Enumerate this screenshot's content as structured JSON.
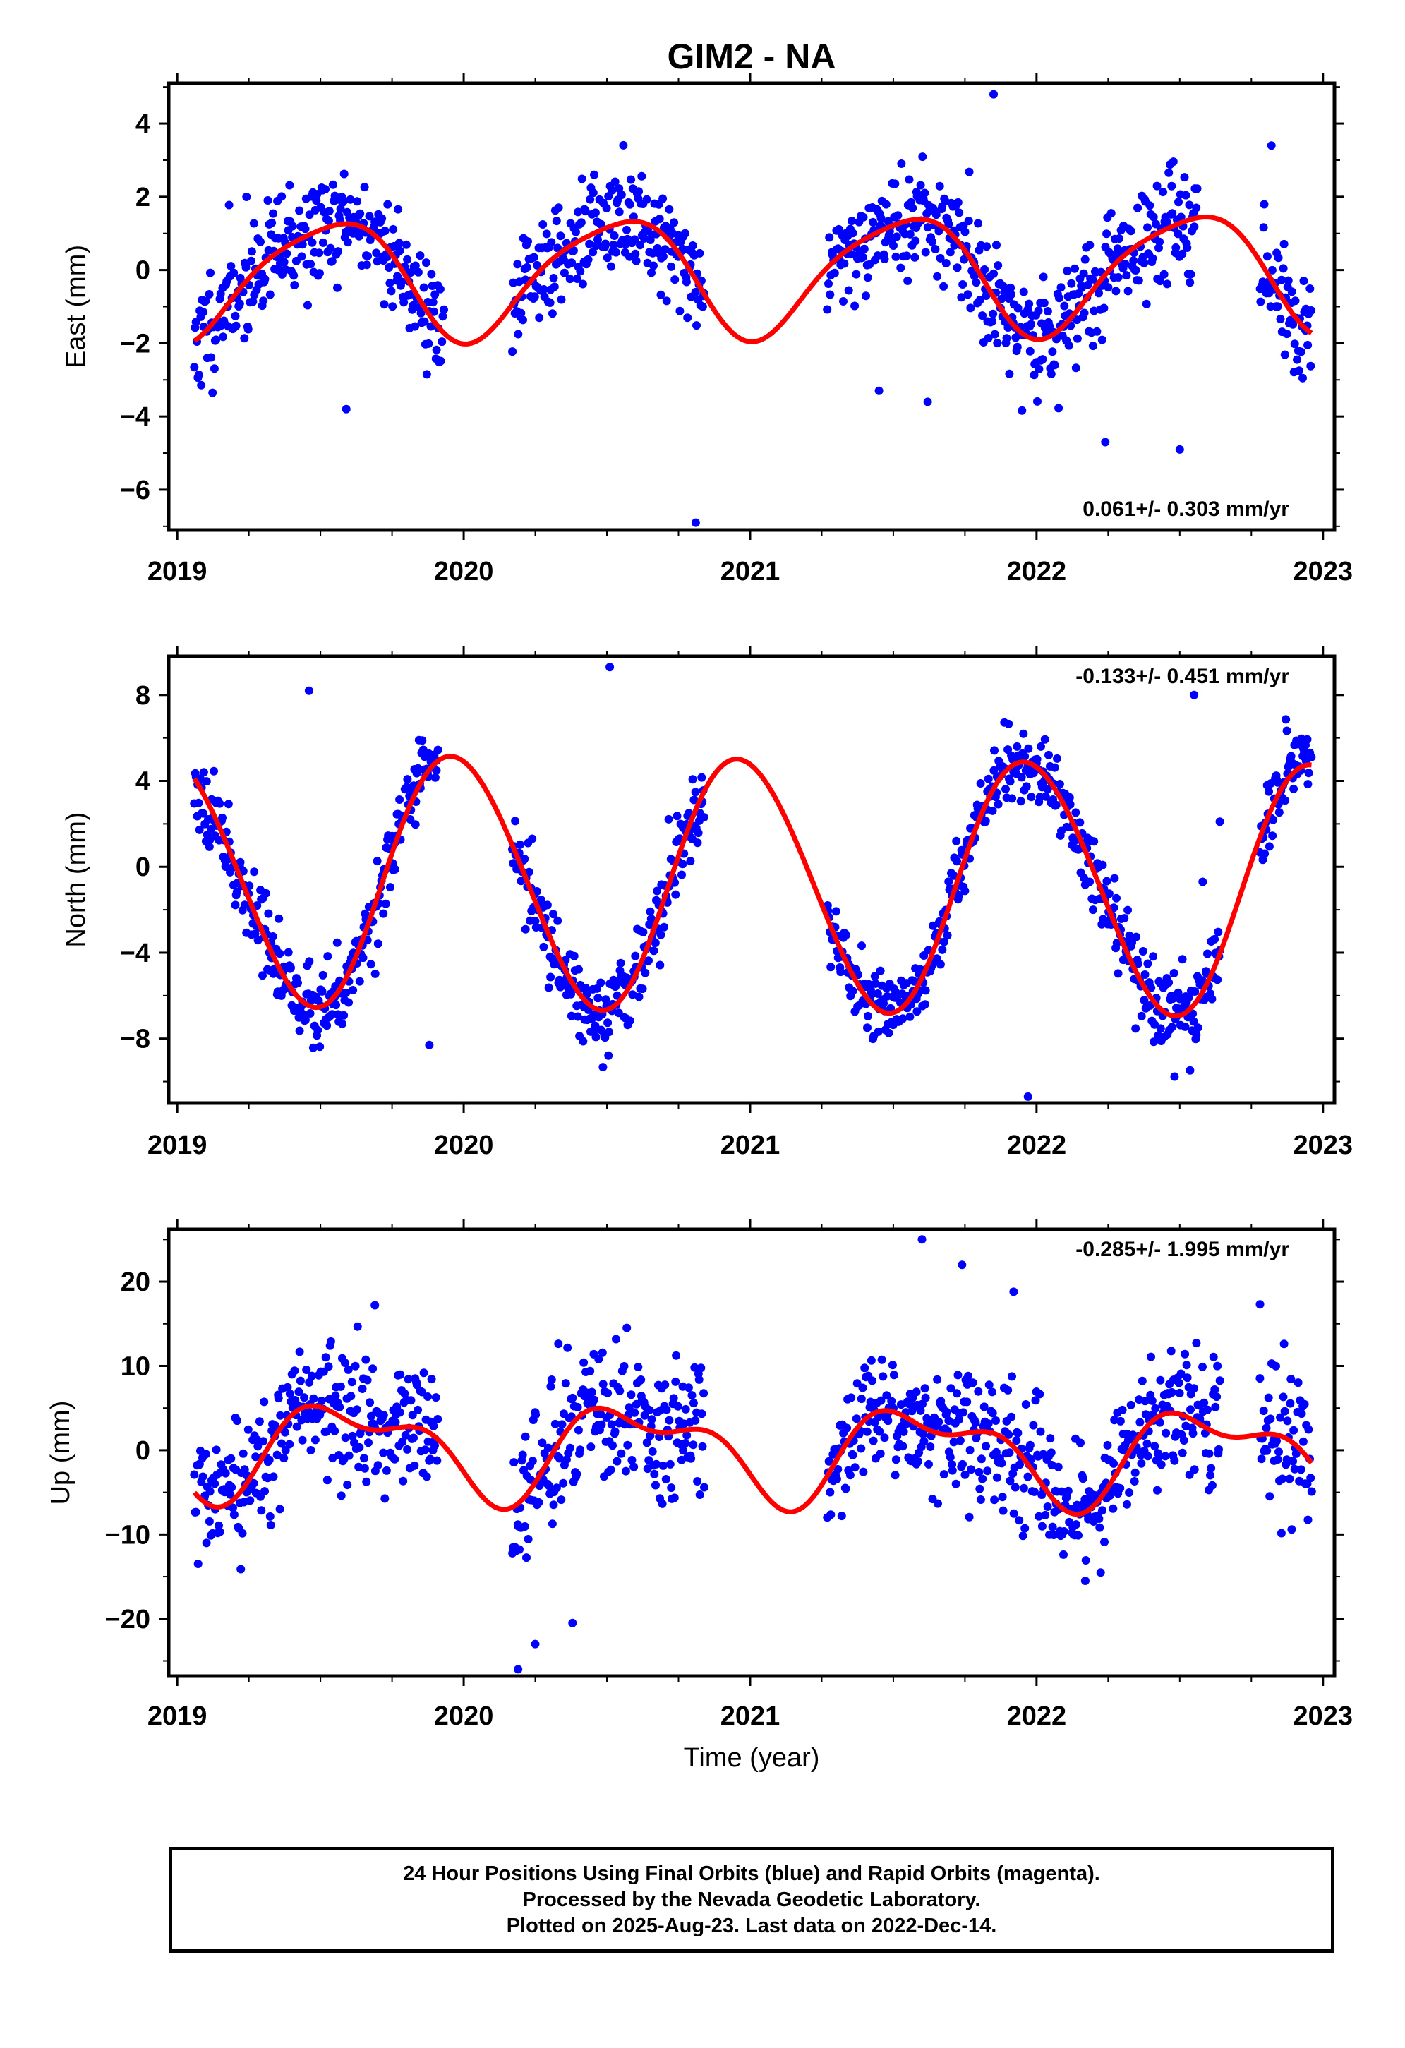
{
  "chart_data": {
    "type": "scatter",
    "title": "GIM2 - NA",
    "xlabel": "Time (year)",
    "x_ticks": [
      "2019",
      "2020",
      "2021",
      "2022",
      "2023"
    ],
    "colors": {
      "points": "#0000ff",
      "fit": "#ff0000",
      "frame": "#000000"
    },
    "panels": [
      {
        "name": "east",
        "ylabel": "East (mm)",
        "ylim": [
          -7.1,
          5.1
        ],
        "xlim": [
          2018.97,
          2023.04
        ],
        "y_ticks": [
          4,
          2,
          0,
          -2,
          -4,
          -6
        ],
        "rate": "0.061+/- 0.303 mm/yr",
        "rate_position": "bottom-right",
        "fit": {
          "mean": -0.1,
          "trend": 0.061,
          "a1": 1.6,
          "p1": 0.28,
          "a2": 0.3,
          "p2": 0.1
        },
        "data_segments": [
          [
            2019.06,
            2019.93
          ],
          [
            2020.17,
            2020.84
          ],
          [
            2021.27,
            2021.58
          ],
          [
            2021.58,
            2022.56
          ],
          [
            2022.78,
            2022.96
          ]
        ],
        "point_sigma": 0.75,
        "seed": 11,
        "outliers": [
          [
            2020.81,
            -6.9
          ],
          [
            2022.24,
            -4.7
          ],
          [
            2022.5,
            -4.9
          ],
          [
            2021.62,
            -3.6
          ],
          [
            2019.59,
            -3.8
          ],
          [
            2021.85,
            4.8
          ],
          [
            2022.82,
            3.4
          ],
          [
            2021.45,
            -3.3
          ]
        ]
      },
      {
        "name": "north",
        "ylabel": "North (mm)",
        "ylim": [
          -11,
          9.8
        ],
        "xlim": [
          2018.97,
          2023.04
        ],
        "y_ticks": [
          8,
          4,
          0,
          -4,
          -8
        ],
        "rate": "-0.133+/- 0.451 mm/yr",
        "rate_position": "top-right",
        "fit": {
          "mean": -0.8,
          "trend": -0.133,
          "a1": 5.85,
          "p1": 0.72,
          "a2": 0.3,
          "p2": 0.2
        },
        "data_segments": [
          [
            2019.06,
            2019.91
          ],
          [
            2020.17,
            2020.84
          ],
          [
            2021.27,
            2021.58
          ],
          [
            2021.58,
            2022.64
          ],
          [
            2022.78,
            2022.96
          ]
        ],
        "point_sigma": 0.9,
        "seed": 23,
        "outliers": [
          [
            2020.51,
            9.3
          ],
          [
            2019.46,
            8.2
          ],
          [
            2022.55,
            8.0
          ],
          [
            2021.97,
            -10.7
          ],
          [
            2022.58,
            -0.7
          ],
          [
            2019.88,
            -8.3
          ],
          [
            2022.64,
            2.1
          ]
        ]
      },
      {
        "name": "up",
        "ylabel": "Up (mm)",
        "ylim": [
          -26.8,
          26.2
        ],
        "xlim": [
          2018.97,
          2023.04
        ],
        "y_ticks": [
          20,
          10,
          0,
          -10,
          -20
        ],
        "rate": "-0.285+/- 1.995 mm/yr",
        "rate_position": "top-right",
        "fit": {
          "mean": 0.0,
          "trend": -0.285,
          "a1": 4.9,
          "p1": 0.36,
          "a2": 2.5,
          "p2": 0.78
        },
        "data_segments": [
          [
            2019.06,
            2019.91
          ],
          [
            2020.17,
            2020.84
          ],
          [
            2021.27,
            2021.58
          ],
          [
            2021.58,
            2022.64
          ],
          [
            2022.78,
            2022.96
          ]
        ],
        "point_sigma": 3.9,
        "seed": 37,
        "outliers": [
          [
            2021.6,
            25.0
          ],
          [
            2020.19,
            -26.0
          ],
          [
            2020.25,
            -23.0
          ],
          [
            2022.17,
            -15.5
          ],
          [
            2021.74,
            22.0
          ],
          [
            2022.78,
            17.3
          ],
          [
            2019.69,
            17.2
          ],
          [
            2021.92,
            18.8
          ],
          [
            2020.38,
            -20.5
          ]
        ]
      }
    ]
  },
  "footer": {
    "line1": "24 Hour Positions Using Final Orbits (blue) and Rapid Orbits (magenta).",
    "line2": "Processed by the Nevada Geodetic Laboratory.",
    "line3": "Plotted on 2025-Aug-23. Last data on 2022-Dec-14."
  }
}
